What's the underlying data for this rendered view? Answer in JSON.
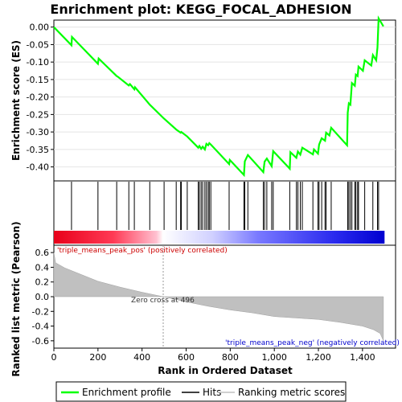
{
  "chart_data": {
    "type": "line",
    "title": "Enrichment plot: KEGG_FOCAL_ADHESION",
    "panels": {
      "es": {
        "ylabel": "Enrichment score (ES)",
        "ylim": [
          -0.44,
          0.02
        ],
        "yticks": [
          0.0,
          -0.05,
          -0.1,
          -0.15,
          -0.2,
          -0.25,
          -0.3,
          -0.35,
          -0.4
        ],
        "ytick_labels": [
          "0.00",
          "-0.05",
          "-0.10",
          "-0.15",
          "-0.20",
          "-0.25",
          "-0.30",
          "-0.35",
          "-0.40"
        ],
        "series": [
          {
            "name": "Enrichment profile",
            "color": "#00ff00",
            "points": [
              [
                0,
                0.0
              ],
              [
                80,
                -0.052
              ],
              [
                82,
                -0.028
              ],
              [
                200,
                -0.105
              ],
              [
                203,
                -0.09
              ],
              [
                285,
                -0.14
              ],
              [
                290,
                -0.142
              ],
              [
                340,
                -0.167
              ],
              [
                345,
                -0.163
              ],
              [
                365,
                -0.178
              ],
              [
                368,
                -0.172
              ],
              [
                435,
                -0.222
              ],
              [
                500,
                -0.262
              ],
              [
                555,
                -0.293
              ],
              [
                575,
                -0.302
              ],
              [
                578,
                -0.3
              ],
              [
                605,
                -0.313
              ],
              [
                655,
                -0.345
              ],
              [
                660,
                -0.34
              ],
              [
                668,
                -0.348
              ],
              [
                675,
                -0.342
              ],
              [
                685,
                -0.35
              ],
              [
                692,
                -0.334
              ],
              [
                700,
                -0.338
              ],
              [
                705,
                -0.332
              ],
              [
                712,
                -0.336
              ],
              [
                795,
                -0.392
              ],
              [
                798,
                -0.38
              ],
              [
                862,
                -0.423
              ],
              [
                866,
                -0.384
              ],
              [
                880,
                -0.366
              ],
              [
                950,
                -0.415
              ],
              [
                956,
                -0.385
              ],
              [
                966,
                -0.376
              ],
              [
                988,
                -0.398
              ],
              [
                995,
                -0.355
              ],
              [
                1070,
                -0.405
              ],
              [
                1073,
                -0.358
              ],
              [
                1100,
                -0.374
              ],
              [
                1107,
                -0.356
              ],
              [
                1118,
                -0.365
              ],
              [
                1127,
                -0.345
              ],
              [
                1175,
                -0.364
              ],
              [
                1180,
                -0.35
              ],
              [
                1198,
                -0.362
              ],
              [
                1203,
                -0.336
              ],
              [
                1215,
                -0.318
              ],
              [
                1230,
                -0.325
              ],
              [
                1235,
                -0.302
              ],
              [
                1250,
                -0.31
              ],
              [
                1258,
                -0.288
              ],
              [
                1330,
                -0.338
              ],
              [
                1333,
                -0.245
              ],
              [
                1338,
                -0.218
              ],
              [
                1345,
                -0.222
              ],
              [
                1352,
                -0.16
              ],
              [
                1365,
                -0.168
              ],
              [
                1370,
                -0.136
              ],
              [
                1378,
                -0.14
              ],
              [
                1382,
                -0.113
              ],
              [
                1402,
                -0.125
              ],
              [
                1410,
                -0.095
              ],
              [
                1440,
                -0.11
              ],
              [
                1447,
                -0.08
              ],
              [
                1462,
                -0.095
              ],
              [
                1468,
                -0.058
              ],
              [
                1473,
                0.025
              ],
              [
                1495,
                0.002
              ]
            ]
          }
        ]
      },
      "hits": {
        "legend_label": "Hits",
        "positions": [
          80,
          200,
          285,
          340,
          365,
          435,
          500,
          555,
          575,
          578,
          605,
          655,
          660,
          668,
          675,
          685,
          692,
          700,
          705,
          712,
          795,
          862,
          866,
          880,
          950,
          956,
          966,
          988,
          995,
          1070,
          1100,
          1107,
          1118,
          1127,
          1175,
          1198,
          1203,
          1215,
          1230,
          1235,
          1258,
          1333,
          1338,
          1345,
          1352,
          1365,
          1370,
          1378,
          1382,
          1410,
          1447,
          1468,
          1473
        ]
      },
      "ranked_metric": {
        "ylabel": "Ranked list metric (Pearson)",
        "legend_label": "Ranking metric scores",
        "ylim": [
          -0.7,
          0.7
        ],
        "yticks": [
          0.6,
          0.4,
          0.2,
          0.0,
          -0.2,
          -0.4,
          -0.6
        ],
        "ytick_labels": [
          "0.6",
          "0.4",
          "0.2",
          "0.0",
          "-0.2",
          "-0.4",
          "-0.6"
        ],
        "curve": [
          [
            0,
            0.6
          ],
          [
            8,
            0.46
          ],
          [
            50,
            0.39
          ],
          [
            100,
            0.33
          ],
          [
            200,
            0.21
          ],
          [
            300,
            0.13
          ],
          [
            400,
            0.06
          ],
          [
            496,
            0.0
          ],
          [
            600,
            -0.07
          ],
          [
            700,
            -0.13
          ],
          [
            800,
            -0.18
          ],
          [
            900,
            -0.22
          ],
          [
            1000,
            -0.27
          ],
          [
            1100,
            -0.29
          ],
          [
            1200,
            -0.31
          ],
          [
            1300,
            -0.35
          ],
          [
            1400,
            -0.4
          ],
          [
            1450,
            -0.45
          ],
          [
            1480,
            -0.5
          ],
          [
            1495,
            -0.6
          ]
        ],
        "zero_cross_label": "Zero cross at 496",
        "zero_cross": 496,
        "pos_label": "'triple_means_peak_pos' (positively correlated)",
        "neg_label": "'triple_means_peak_neg' (negatively correlated)"
      }
    },
    "xlabel": "Rank in Ordered Dataset",
    "xlim": [
      0,
      1550
    ],
    "xticks": [
      0,
      200,
      400,
      600,
      800,
      1000,
      1200,
      1400
    ],
    "xtick_labels": [
      "0",
      "200",
      "400",
      "600",
      "800",
      "1,000",
      "1,200",
      "1,400"
    ],
    "legend": {
      "placement": "bottom",
      "items": [
        "Enrichment profile",
        "Hits",
        "Ranking metric scores"
      ]
    },
    "colors": {
      "profile": "#00ff00",
      "hits": "#000000",
      "metric_fill": "#c0c0c0",
      "pos_label": "#cc0000",
      "neg_label": "#0000cc",
      "bar_red": "#e8001a",
      "bar_white": "#ffffff",
      "bar_blue": "#0000e0"
    }
  }
}
